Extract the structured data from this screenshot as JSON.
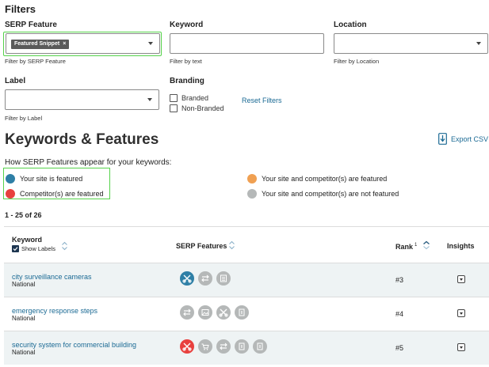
{
  "filters": {
    "title": "Filters",
    "serp_feature": {
      "label": "SERP Feature",
      "chip": "Featured Snippet",
      "chip_remove": "×",
      "help": "Filter by SERP Feature"
    },
    "keyword": {
      "label": "Keyword",
      "value": "",
      "help": "Filter by text"
    },
    "location": {
      "label": "Location",
      "help": "Filter by Location"
    },
    "label": {
      "label": "Label",
      "help": "Filter by Label"
    },
    "branding": {
      "label": "Branding",
      "options": [
        "Branded",
        "Non-Branded"
      ]
    },
    "reset": "Reset Filters"
  },
  "section": {
    "title": "Keywords & Features",
    "export": "Export CSV",
    "subtitle": "How SERP Features appear for your keywords:",
    "legend": [
      {
        "text": "Your site is featured",
        "color": "#2e7fa6"
      },
      {
        "text": "Competitor(s) are featured",
        "color": "#e8403e"
      },
      {
        "text": "Your site and competitor(s) are featured",
        "color": "#f0a052"
      },
      {
        "text": "Your site and competitor(s) are not featured",
        "color": "#b5b8b8"
      }
    ],
    "count": "1 - 25 of 26"
  },
  "table": {
    "headers": {
      "keyword": "Keyword",
      "show_labels": "Show Labels",
      "serp": "SERP Features",
      "rank": "Rank",
      "rank_sup": "1",
      "insights": "Insights"
    },
    "rows": [
      {
        "keyword": "city surveillance cameras",
        "location": "National",
        "rank": "#3",
        "features": [
          {
            "icon": "scissors-icon",
            "state": "yours"
          },
          {
            "icon": "arrows-icon",
            "state": "none"
          },
          {
            "icon": "news-icon",
            "state": "none"
          }
        ]
      },
      {
        "keyword": "emergency response steps",
        "location": "National",
        "rank": "#4",
        "features": [
          {
            "icon": "arrows-icon",
            "state": "none"
          },
          {
            "icon": "image-icon",
            "state": "none"
          },
          {
            "icon": "scissors-icon",
            "state": "none"
          },
          {
            "icon": "knowledge-icon",
            "state": "none"
          }
        ]
      },
      {
        "keyword": "security system for commercial building",
        "location": "National",
        "rank": "#5",
        "features": [
          {
            "icon": "scissors-icon",
            "state": "competitor"
          },
          {
            "icon": "cart-icon",
            "state": "none"
          },
          {
            "icon": "arrows-icon",
            "state": "none"
          },
          {
            "icon": "knowledge-icon",
            "state": "none"
          },
          {
            "icon": "knowledge-icon",
            "state": "none"
          }
        ]
      }
    ]
  },
  "colors": {
    "accent": "#1b6a94",
    "highlight": "#55d24a",
    "row_alt": "#eef3f4",
    "none": "#b5b8b8"
  }
}
